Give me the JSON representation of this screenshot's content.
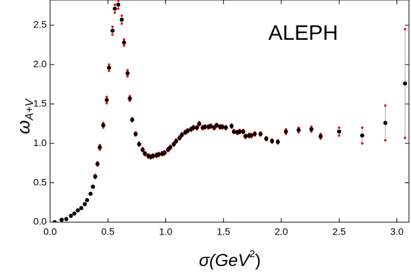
{
  "chart_data": {
    "type": "errorbar-scatter",
    "annotation": "ALEPH",
    "x_label": {
      "before": "σ(GeV",
      "superscript": "2",
      "after": ")"
    },
    "y_label": {
      "symbol": "ω",
      "subscript": "A+V"
    },
    "xlim": [
      0,
      3.11
    ],
    "ylim": [
      0,
      2.82
    ],
    "xticks": [
      {
        "value": 0,
        "label": "0.0"
      },
      {
        "value": 0.5,
        "label": "0.5"
      },
      {
        "value": 1,
        "label": "1.0"
      },
      {
        "value": 1.5,
        "label": "1.5"
      },
      {
        "value": 2,
        "label": "2.0"
      },
      {
        "value": 2.5,
        "label": "2.5"
      },
      {
        "value": 3,
        "label": "3.0"
      }
    ],
    "yticks": [
      {
        "value": 0,
        "label": "0.0"
      },
      {
        "value": 0.5,
        "label": "0.5"
      },
      {
        "value": 1,
        "label": "1.0"
      },
      {
        "value": 1.5,
        "label": "1.5"
      },
      {
        "value": 2,
        "label": "2.0"
      },
      {
        "value": 2.5,
        "label": "2.5"
      }
    ],
    "series": [
      {
        "color": "#000000",
        "error_color": "#ee1111",
        "x": [
          0.04,
          0.1,
          0.14,
          0.18,
          0.21,
          0.24,
          0.27,
          0.3,
          0.32,
          0.35,
          0.37,
          0.39,
          0.41,
          0.43,
          0.46,
          0.49,
          0.51,
          0.54,
          0.56,
          0.59,
          0.62,
          0.64,
          0.67,
          0.69,
          0.71,
          0.74,
          0.77,
          0.8,
          0.82,
          0.85,
          0.87,
          0.89,
          0.92,
          0.94,
          0.97,
          0.99,
          1.02,
          1.04,
          1.07,
          1.09,
          1.12,
          1.14,
          1.17,
          1.19,
          1.22,
          1.24,
          1.27,
          1.29,
          1.32,
          1.34,
          1.37,
          1.39,
          1.42,
          1.44,
          1.47,
          1.49,
          1.52,
          1.57,
          1.59,
          1.62,
          1.64,
          1.67,
          1.69,
          1.72,
          1.74,
          1.77,
          1.82,
          1.87,
          1.92,
          1.97,
          2.04,
          2.15,
          2.26,
          2.34,
          2.5,
          2.7,
          2.9,
          3.07
        ],
        "y": [
          0,
          0.03,
          0.04,
          0.08,
          0.11,
          0.15,
          0.18,
          0.23,
          0.28,
          0.36,
          0.45,
          0.58,
          0.74,
          0.95,
          1.23,
          1.55,
          1.96,
          2.43,
          2.71,
          2.76,
          2.57,
          2.28,
          1.89,
          1.57,
          1.3,
          1.12,
          0.99,
          0.92,
          0.87,
          0.84,
          0.83,
          0.84,
          0.85,
          0.86,
          0.87,
          0.88,
          0.92,
          0.95,
          0.99,
          1.03,
          1.07,
          1.11,
          1.14,
          1.16,
          1.18,
          1.2,
          1.2,
          1.25,
          1.2,
          1.21,
          1.21,
          1.22,
          1.2,
          1.23,
          1.21,
          1.21,
          1.2,
          1.22,
          1.15,
          1.14,
          1.15,
          1.15,
          1.09,
          1.1,
          1.1,
          1.12,
          1.12,
          1.06,
          1.03,
          1.02,
          1.15,
          1.17,
          1.18,
          1.09,
          1.15,
          1.1,
          1.26,
          1.76
        ],
        "err": [
          0.01,
          0.01,
          0.01,
          0.01,
          0.01,
          0.01,
          0.01,
          0.01,
          0.01,
          0.01,
          0.01,
          0.02,
          0.02,
          0.03,
          0.03,
          0.04,
          0.04,
          0.05,
          0.05,
          0.05,
          0.05,
          0.04,
          0.04,
          0.03,
          0.02,
          0.02,
          0.02,
          0.02,
          0.02,
          0.02,
          0.02,
          0.02,
          0.02,
          0.02,
          0.02,
          0.02,
          0.02,
          0.02,
          0.02,
          0.02,
          0.02,
          0.02,
          0.02,
          0.02,
          0.02,
          0.02,
          0.02,
          0.02,
          0.02,
          0.02,
          0.02,
          0.02,
          0.02,
          0.02,
          0.02,
          0.02,
          0.02,
          0.02,
          0.02,
          0.02,
          0.02,
          0.02,
          0.02,
          0.02,
          0.02,
          0.02,
          0.02,
          0.02,
          0.02,
          0.02,
          0.03,
          0.03,
          0.03,
          0.03,
          0.05,
          0.1,
          0.22,
          0.69
        ]
      }
    ]
  }
}
